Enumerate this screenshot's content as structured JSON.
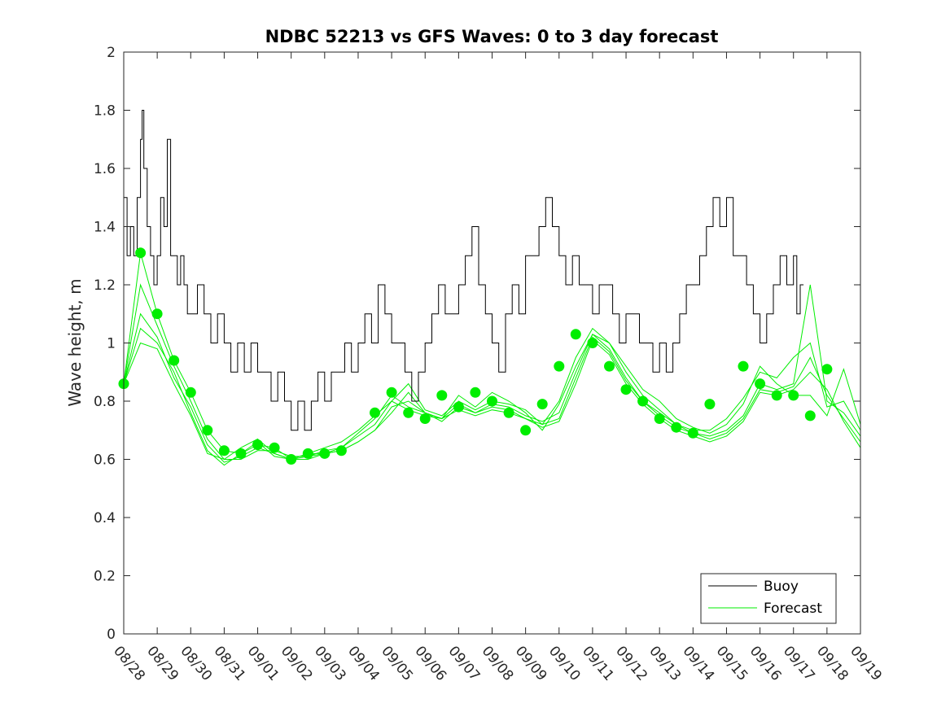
{
  "chart_data": {
    "type": "line",
    "title": "NDBC 52213 vs GFS Waves: 0 to 3 day forecast",
    "xlabel": "",
    "ylabel": "Wave height, m",
    "xlim": [
      0,
      22
    ],
    "ylim": [
      0,
      2
    ],
    "yticks": [
      0,
      0.2,
      0.4,
      0.6,
      0.8,
      1,
      1.2,
      1.4,
      1.6,
      1.8,
      2
    ],
    "ytick_labels": [
      "0",
      "0.2",
      "0.4",
      "0.6",
      "0.8",
      "1",
      "1.2",
      "1.4",
      "1.6",
      "1.8",
      "2"
    ],
    "xtick_labels": [
      "08/28",
      "08/29",
      "08/30",
      "08/31",
      "09/01",
      "09/02",
      "09/03",
      "09/04",
      "09/05",
      "09/06",
      "09/07",
      "09/08",
      "09/09",
      "09/10",
      "09/11",
      "09/12",
      "09/13",
      "09/14",
      "09/15",
      "09/16",
      "09/17",
      "09/18",
      "09/19"
    ],
    "x_units": "days since 08/28",
    "legend": {
      "position": "bottom-right",
      "entries": [
        "Buoy",
        "Forecast"
      ]
    },
    "colors": {
      "buoy": "#000000",
      "forecast": "#00ee00"
    },
    "buoy": {
      "name": "Buoy",
      "x": [
        0,
        0.1,
        0.2,
        0.3,
        0.4,
        0.5,
        0.55,
        0.6,
        0.7,
        0.8,
        0.9,
        1.0,
        1.1,
        1.2,
        1.3,
        1.4,
        1.5,
        1.6,
        1.7,
        1.8,
        1.9,
        2.0,
        2.2,
        2.4,
        2.6,
        2.8,
        3.0,
        3.2,
        3.4,
        3.6,
        3.8,
        4.0,
        4.2,
        4.4,
        4.6,
        4.8,
        5.0,
        5.2,
        5.4,
        5.6,
        5.8,
        6.0,
        6.2,
        6.4,
        6.6,
        6.8,
        7.0,
        7.2,
        7.4,
        7.6,
        7.8,
        8.0,
        8.2,
        8.4,
        8.6,
        8.8,
        9.0,
        9.2,
        9.4,
        9.6,
        9.8,
        10.0,
        10.2,
        10.4,
        10.6,
        10.8,
        11.0,
        11.2,
        11.4,
        11.6,
        11.8,
        12.0,
        12.2,
        12.4,
        12.6,
        12.8,
        13.0,
        13.2,
        13.4,
        13.6,
        13.8,
        14.0,
        14.2,
        14.4,
        14.6,
        14.8,
        15.0,
        15.2,
        15.4,
        15.6,
        15.8,
        16.0,
        16.2,
        16.4,
        16.6,
        16.8,
        17.0,
        17.2,
        17.4,
        17.6,
        17.8,
        18.0,
        18.2,
        18.4,
        18.6,
        18.8,
        19.0,
        19.2,
        19.4,
        19.6,
        19.8,
        20.0,
        20.1,
        20.2,
        20.3
      ],
      "values": [
        1.5,
        1.3,
        1.4,
        1.3,
        1.5,
        1.7,
        1.8,
        1.6,
        1.4,
        1.3,
        1.2,
        1.3,
        1.5,
        1.4,
        1.7,
        1.3,
        1.3,
        1.2,
        1.3,
        1.2,
        1.1,
        1.1,
        1.2,
        1.1,
        1.0,
        1.1,
        1.0,
        0.9,
        1.0,
        0.9,
        1.0,
        0.9,
        0.9,
        0.8,
        0.9,
        0.8,
        0.7,
        0.8,
        0.7,
        0.8,
        0.9,
        0.8,
        0.9,
        0.9,
        1.0,
        0.9,
        1.0,
        1.1,
        1.0,
        1.2,
        1.1,
        1.0,
        1.0,
        0.9,
        0.8,
        0.9,
        1.0,
        1.1,
        1.2,
        1.1,
        1.1,
        1.2,
        1.3,
        1.4,
        1.2,
        1.1,
        1.0,
        0.9,
        1.1,
        1.2,
        1.1,
        1.3,
        1.3,
        1.4,
        1.5,
        1.4,
        1.3,
        1.2,
        1.3,
        1.2,
        1.2,
        1.1,
        1.2,
        1.2,
        1.1,
        1.0,
        1.1,
        1.1,
        1.0,
        1.0,
        0.9,
        1.0,
        0.9,
        1.0,
        1.1,
        1.2,
        1.2,
        1.3,
        1.4,
        1.5,
        1.4,
        1.5,
        1.3,
        1.3,
        1.2,
        1.1,
        1.0,
        1.1,
        1.2,
        1.3,
        1.2,
        1.3,
        1.1,
        1.2,
        1.2
      ]
    },
    "forecast": {
      "name": "Forecast",
      "runs_x": [
        0,
        0.5,
        1,
        1.5,
        2,
        2.5,
        3,
        3.5,
        4,
        4.5,
        5,
        5.5,
        6,
        6.5,
        7,
        7.5,
        8,
        8.5,
        9,
        9.5,
        10,
        10.5,
        11,
        11.5,
        12,
        12.5,
        13,
        13.5,
        14,
        14.5,
        15,
        15.5,
        16,
        16.5,
        17,
        17.5,
        18,
        18.5,
        19,
        19.5,
        20,
        20.5,
        21,
        21.5,
        22
      ],
      "runs": [
        [
          0.86,
          1.31,
          1.1,
          0.94,
          0.83,
          0.7,
          0.63,
          0.62,
          0.65,
          0.64,
          0.6,
          0.62,
          0.62,
          0.63,
          0.66,
          0.7,
          0.76,
          0.83,
          0.76,
          0.74,
          0.82,
          0.78,
          0.83,
          0.8,
          0.76,
          0.7,
          0.79,
          0.92,
          1.03,
          1.0,
          0.92,
          0.84,
          0.8,
          0.74,
          0.71,
          0.69,
          0.72,
          0.79,
          0.92,
          0.86,
          0.82,
          0.82,
          0.75,
          0.91,
          0.72
        ],
        [
          0.86,
          1.2,
          1.06,
          0.92,
          0.8,
          0.67,
          0.6,
          0.6,
          0.63,
          0.63,
          0.61,
          0.61,
          0.63,
          0.64,
          0.68,
          0.72,
          0.8,
          0.86,
          0.77,
          0.75,
          0.8,
          0.77,
          0.8,
          0.79,
          0.77,
          0.72,
          0.8,
          0.95,
          1.05,
          1.0,
          0.9,
          0.82,
          0.77,
          0.72,
          0.7,
          0.7,
          0.74,
          0.81,
          0.9,
          0.88,
          0.95,
          1.0,
          0.78,
          0.8,
          0.7
        ],
        [
          0.86,
          1.1,
          1.02,
          0.88,
          0.78,
          0.65,
          0.59,
          0.61,
          0.64,
          0.62,
          0.6,
          0.6,
          0.62,
          0.63,
          0.66,
          0.7,
          0.78,
          0.8,
          0.76,
          0.74,
          0.79,
          0.76,
          0.79,
          0.78,
          0.75,
          0.73,
          0.76,
          0.9,
          1.03,
          0.98,
          0.88,
          0.8,
          0.76,
          0.72,
          0.69,
          0.68,
          0.7,
          0.75,
          0.86,
          0.84,
          0.86,
          1.2,
          0.8,
          0.76,
          0.68
        ],
        [
          0.86,
          1.05,
          1.0,
          0.9,
          0.76,
          0.63,
          0.58,
          0.62,
          0.66,
          0.61,
          0.6,
          0.61,
          0.62,
          0.64,
          0.69,
          0.74,
          0.82,
          0.78,
          0.76,
          0.73,
          0.78,
          0.76,
          0.78,
          0.77,
          0.74,
          0.72,
          0.74,
          0.88,
          1.02,
          0.97,
          0.87,
          0.8,
          0.75,
          0.71,
          0.69,
          0.67,
          0.69,
          0.74,
          0.84,
          0.83,
          0.85,
          0.95,
          0.82,
          0.74,
          0.66
        ],
        [
          0.86,
          1.0,
          0.98,
          0.86,
          0.75,
          0.62,
          0.6,
          0.64,
          0.67,
          0.62,
          0.6,
          0.62,
          0.64,
          0.66,
          0.7,
          0.75,
          0.8,
          0.77,
          0.75,
          0.74,
          0.77,
          0.75,
          0.77,
          0.76,
          0.74,
          0.71,
          0.73,
          0.86,
          1.01,
          0.96,
          0.86,
          0.79,
          0.74,
          0.7,
          0.68,
          0.66,
          0.68,
          0.73,
          0.83,
          0.82,
          0.84,
          0.9,
          0.84,
          0.73,
          0.64
        ]
      ],
      "analysis_points": {
        "x": [
          0,
          0.5,
          1,
          1.5,
          2,
          2.5,
          3,
          3.5,
          4,
          4.5,
          5,
          5.5,
          6,
          6.5,
          7.5,
          8,
          8.5,
          9,
          9.5,
          10,
          10.5,
          11,
          11.5,
          12,
          12.5,
          13,
          13.5,
          14,
          14.5,
          15,
          15.5,
          16,
          16.5,
          17,
          17.5,
          18.5,
          19,
          19.5,
          20,
          20.5,
          21
        ],
        "values": [
          0.86,
          1.31,
          1.1,
          0.94,
          0.83,
          0.7,
          0.63,
          0.62,
          0.65,
          0.64,
          0.6,
          0.62,
          0.62,
          0.63,
          0.76,
          0.83,
          0.76,
          0.74,
          0.82,
          0.78,
          0.83,
          0.8,
          0.76,
          0.7,
          0.79,
          0.92,
          1.03,
          1.0,
          0.92,
          0.84,
          0.8,
          0.74,
          0.71,
          0.69,
          0.79,
          0.92,
          0.86,
          0.82,
          0.82,
          0.75,
          0.91
        ]
      }
    }
  }
}
